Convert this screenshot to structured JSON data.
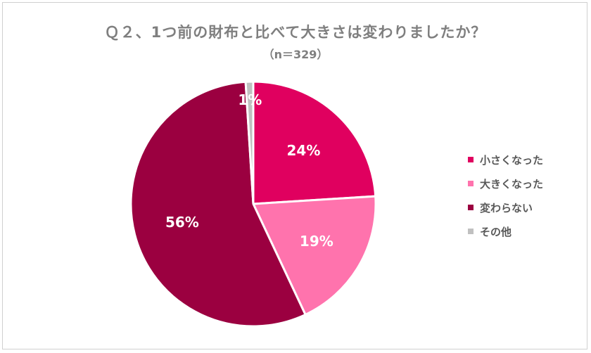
{
  "chart_data": {
    "type": "pie",
    "title": "Ｑ２、1つ前の財布と比べて大きさは変わりましたか？",
    "subtitle": "（n＝329）",
    "categories": [
      "小さくなった",
      "大きくなった",
      "変わらない",
      "その他"
    ],
    "values": [
      24,
      19,
      56,
      1
    ],
    "labels": [
      "24%",
      "19%",
      "56%",
      "1%"
    ],
    "colors": [
      "#e0005f",
      "#ff73ad",
      "#9b0040",
      "#c0c0c0"
    ],
    "legend_position": "right"
  }
}
